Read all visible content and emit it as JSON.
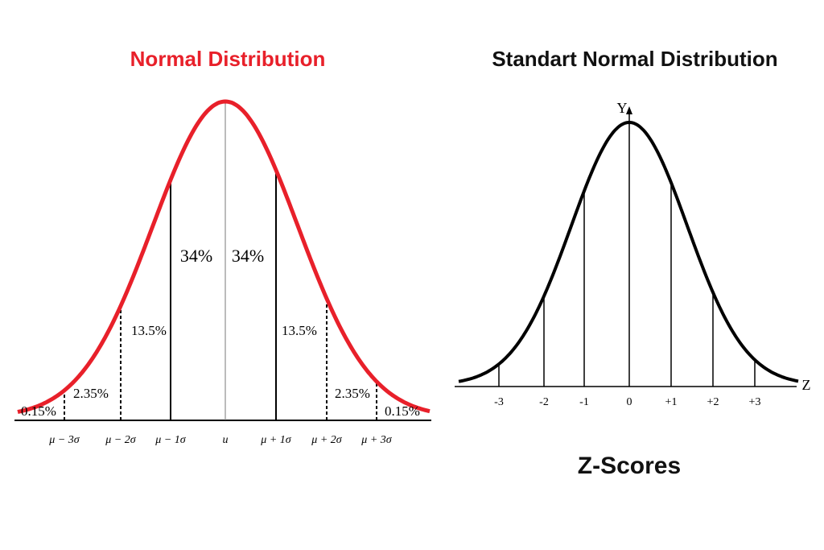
{
  "left": {
    "title": "Normal Distribution",
    "regions": [
      "0.15%",
      "2.35%",
      "13.5%",
      "34%",
      "34%",
      "13.5%",
      "2.35%",
      "0.15%"
    ],
    "x_labels": [
      "μ − 3σ",
      "μ − 2σ",
      "μ − 1σ",
      "u",
      "μ + 1σ",
      "μ + 2σ",
      "μ + 3σ"
    ]
  },
  "right": {
    "title": "Standart Normal Distribution",
    "y_axis": "Y",
    "x_axis": "Z",
    "ticks": [
      "-3",
      "-2",
      "-1",
      "0",
      "+1",
      "+2",
      "+3"
    ],
    "footer": "Z-Scores"
  }
}
